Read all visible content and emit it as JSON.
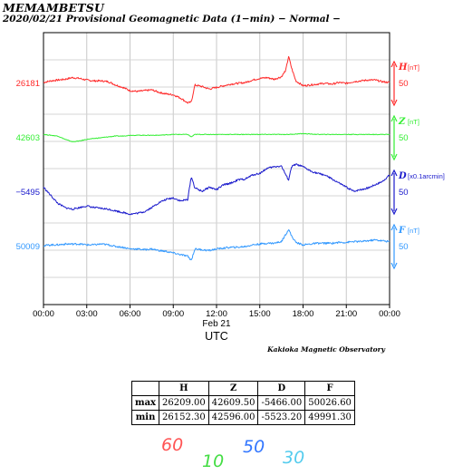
{
  "header": {
    "station": "MEMAMBETSU",
    "subtitle": "2020/02/21  Provisional Geomagnetic Data (1−min)  − Normal −"
  },
  "chart_data": {
    "type": "line",
    "x_tick_labels": [
      "00:00",
      "03:00",
      "06:00",
      "09:00",
      "12:00",
      "15:00",
      "18:00",
      "21:00",
      "00:00"
    ],
    "x_date_label": "Feb 21",
    "x_axis_label": "UTC",
    "credit": "Kakioka Magnetic Observatory",
    "grid": true,
    "series": [
      {
        "name": "H",
        "unit": "[nT]",
        "base_label": "26181",
        "scale_label": "50",
        "color": "#ff2a2a",
        "x": [
          0,
          0.5,
          1,
          1.5,
          2,
          2.5,
          3,
          3.5,
          4,
          4.5,
          5,
          5.5,
          6,
          6.5,
          7,
          7.5,
          8,
          8.5,
          9,
          9.5,
          10,
          10.25,
          10.5,
          11,
          11.5,
          12,
          12.5,
          13,
          13.5,
          14,
          14.5,
          15,
          15.5,
          16,
          16.5,
          16.8,
          17,
          17.2,
          17.5,
          18,
          18.5,
          19,
          19.5,
          20,
          20.5,
          21,
          21.5,
          22,
          22.5,
          23,
          23.5,
          24
        ],
        "values": [
          0,
          2,
          3,
          4,
          6,
          5,
          3,
          2,
          2,
          1,
          -3,
          -6,
          -10,
          -11,
          -10,
          -9,
          -12,
          -14,
          -15,
          -19,
          -25,
          -24,
          -3,
          -5,
          -8,
          -6,
          -4,
          -2,
          -1,
          0,
          3,
          5,
          6,
          4,
          7,
          15,
          32,
          18,
          2,
          -4,
          -3,
          -2,
          -1,
          -2,
          0,
          -1,
          1,
          2,
          3,
          3,
          1,
          0
        ]
      },
      {
        "name": "Z",
        "unit": "[nT]",
        "base_label": "42603",
        "scale_label": "50",
        "color": "#33ee33",
        "x": [
          0,
          0.5,
          1,
          1.5,
          2,
          2.5,
          3,
          3.5,
          4,
          4.5,
          5,
          5.5,
          6,
          7,
          8,
          9,
          10,
          10.25,
          10.5,
          11,
          12,
          13,
          14,
          15,
          16,
          17,
          18,
          19,
          20,
          21,
          22,
          23,
          24
        ],
        "values": [
          3,
          2,
          1,
          -3,
          -6,
          -5,
          -3,
          -2,
          -1,
          0,
          1,
          1,
          2,
          2,
          2,
          3,
          3,
          0,
          3,
          3,
          3,
          3,
          3,
          3,
          3,
          3,
          4,
          3,
          3,
          3,
          3,
          3,
          3
        ]
      },
      {
        "name": "D",
        "unit": "[x0.1arcmin]",
        "base_label": "−5495",
        "scale_label": "50",
        "color": "#1a1acc",
        "x": [
          0,
          0.5,
          1,
          1.5,
          2,
          2.5,
          3,
          3.5,
          4,
          4.5,
          5,
          5.5,
          6,
          6.5,
          7,
          7.5,
          8,
          8.5,
          9,
          9.5,
          10,
          10.25,
          10.5,
          11,
          11.5,
          12,
          12.5,
          13,
          13.5,
          14,
          14.5,
          15,
          15.5,
          16,
          16.5,
          16.8,
          17,
          17.2,
          17.5,
          18,
          18.5,
          19,
          19.5,
          20,
          20.5,
          21,
          21.5,
          22,
          22.5,
          23,
          23.5,
          24
        ],
        "values": [
          5,
          -5,
          -15,
          -20,
          -22,
          -20,
          -18,
          -20,
          -21,
          -22,
          -24,
          -26,
          -28,
          -27,
          -25,
          -20,
          -14,
          -10,
          -8,
          -12,
          -10,
          18,
          4,
          0,
          5,
          2,
          8,
          10,
          14,
          15,
          20,
          22,
          28,
          30,
          31,
          20,
          14,
          30,
          33,
          30,
          25,
          22,
          20,
          15,
          10,
          5,
          0,
          2,
          4,
          8,
          12,
          20
        ]
      },
      {
        "name": "F",
        "unit": "[nT]",
        "base_label": "50009",
        "scale_label": "50",
        "color": "#3399ff",
        "x": [
          0,
          0.5,
          1,
          1.5,
          2,
          2.5,
          3,
          3.5,
          4,
          4.5,
          5,
          5.5,
          6,
          6.5,
          7,
          7.5,
          8,
          8.5,
          9,
          9.5,
          10,
          10.25,
          10.5,
          11,
          11.5,
          12,
          12.5,
          13,
          13.5,
          14,
          14.5,
          15,
          15.5,
          16,
          16.5,
          17,
          17.2,
          17.5,
          18,
          18.5,
          19,
          19.5,
          20,
          20.5,
          21,
          21.5,
          22,
          22.5,
          23,
          23.5,
          24
        ],
        "values": [
          0,
          1,
          1,
          2,
          2,
          2,
          1,
          1,
          2,
          1,
          -1,
          -2,
          -4,
          -4,
          -5,
          -4,
          -6,
          -7,
          -9,
          -11,
          -13,
          -18,
          -4,
          -5,
          -6,
          -4,
          -3,
          -2,
          -2,
          -1,
          1,
          2,
          3,
          3,
          5,
          20,
          12,
          4,
          1,
          2,
          3,
          3,
          3,
          4,
          4,
          5,
          5,
          6,
          7,
          6,
          5
        ]
      }
    ]
  },
  "stats_table": {
    "headers": [
      "",
      "H",
      "Z",
      "D",
      "F"
    ],
    "rows": [
      {
        "label": "max",
        "values": [
          "26209.00",
          "42609.50",
          "-5466.00",
          "50026.60"
        ]
      },
      {
        "label": "min",
        "values": [
          "26152.30",
          "42596.00",
          "-5523.20",
          "49991.30"
        ]
      }
    ]
  },
  "color_legend": [
    {
      "text": "60",
      "color": "#ff5555"
    },
    {
      "text": "10",
      "color": "#44dd44"
    },
    {
      "text": "50",
      "color": "#3377ff"
    },
    {
      "text": "30",
      "color": "#55ccee"
    }
  ]
}
